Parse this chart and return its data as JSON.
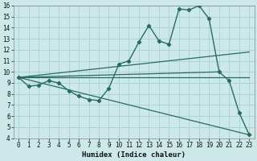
{
  "xlabel": "Humidex (Indice chaleur)",
  "xlim": [
    -0.5,
    23.5
  ],
  "ylim": [
    4,
    16
  ],
  "xticks": [
    0,
    1,
    2,
    3,
    4,
    5,
    6,
    7,
    8,
    9,
    10,
    11,
    12,
    13,
    14,
    15,
    16,
    17,
    18,
    19,
    20,
    21,
    22,
    23
  ],
  "yticks": [
    4,
    5,
    6,
    7,
    8,
    9,
    10,
    11,
    12,
    13,
    14,
    15,
    16
  ],
  "bg_color": "#cce8e8",
  "line_color": "#2a6b60",
  "grid_color": "#aad4d4",
  "line1_x": [
    0,
    1,
    2,
    3,
    4,
    5,
    6,
    7,
    8,
    9,
    10,
    11,
    12,
    13,
    14,
    15,
    16,
    17,
    18,
    19,
    20,
    21,
    22,
    23
  ],
  "line1_y": [
    9.5,
    8.7,
    8.8,
    9.2,
    9.0,
    8.3,
    7.8,
    7.5,
    7.4,
    8.5,
    10.7,
    11.0,
    12.7,
    14.2,
    12.8,
    12.5,
    15.7,
    15.6,
    16.0,
    14.8,
    10.0,
    9.2,
    6.3,
    4.3
  ],
  "line2_x": [
    0,
    23
  ],
  "line2_y": [
    9.5,
    11.8
  ],
  "line3_x": [
    0,
    23
  ],
  "line3_y": [
    9.5,
    4.3
  ],
  "line4_x": [
    0,
    23
  ],
  "line4_y": [
    9.5,
    9.5
  ],
  "line5_x": [
    0,
    20
  ],
  "line5_y": [
    9.5,
    10.0
  ],
  "font_family": "monospace",
  "tick_fontsize": 5.5,
  "xlabel_fontsize": 6.5
}
